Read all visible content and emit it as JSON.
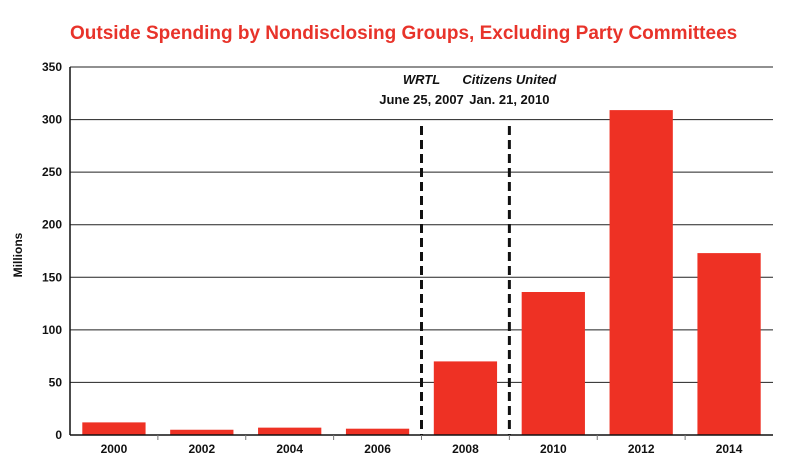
{
  "chart_data": {
    "type": "bar",
    "title": "Outside Spending by Nondisclosing Groups, Excluding Party Committees",
    "xlabel": "",
    "ylabel": "Millions",
    "ylim": [
      0,
      350
    ],
    "yticks": [
      0,
      50,
      100,
      150,
      200,
      250,
      300,
      350
    ],
    "categories": [
      "2000",
      "2002",
      "2004",
      "2006",
      "2008",
      "2010",
      "2012",
      "2014"
    ],
    "values": [
      12,
      5,
      7,
      6,
      70,
      136,
      309,
      173
    ],
    "grid": true,
    "bar_color": "#ee3124",
    "annotations": [
      {
        "name": "WRTL",
        "date": "June 25, 2007",
        "position_between": [
          "2006",
          "2008"
        ]
      },
      {
        "name": "Citizens United",
        "date": "Jan. 21, 2010",
        "position_between": [
          "2008",
          "2010"
        ]
      }
    ]
  }
}
